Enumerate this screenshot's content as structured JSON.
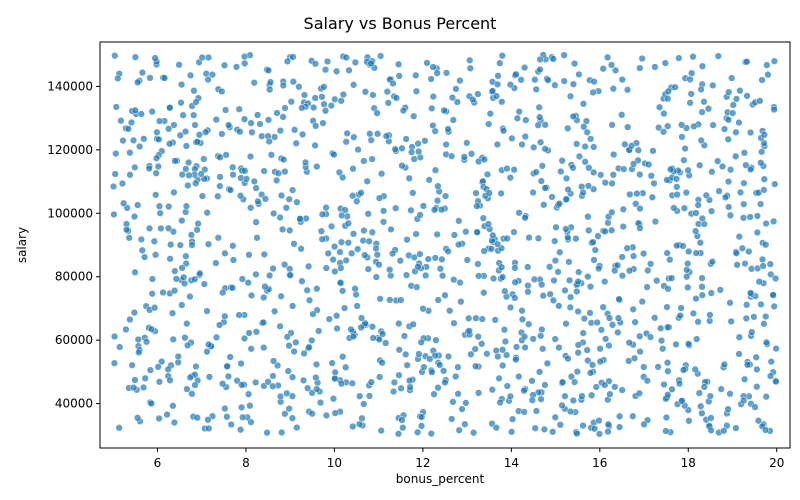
{
  "chart_data": {
    "type": "scatter",
    "title": "Salary vs Bonus Percent",
    "xlabel": "bonus_percent",
    "ylabel": "salary",
    "xlim": [
      4.7,
      20.3
    ],
    "ylim": [
      26000,
      154000
    ],
    "xticks": [
      6,
      8,
      10,
      12,
      14,
      16,
      18,
      20
    ],
    "yticks": [
      40000,
      60000,
      80000,
      100000,
      120000,
      140000
    ],
    "grid": false,
    "color": "#1f77b4",
    "n_points": 1500,
    "x_range": [
      5,
      20
    ],
    "y_range": [
      30000,
      150000
    ],
    "distribution": "uniform"
  }
}
